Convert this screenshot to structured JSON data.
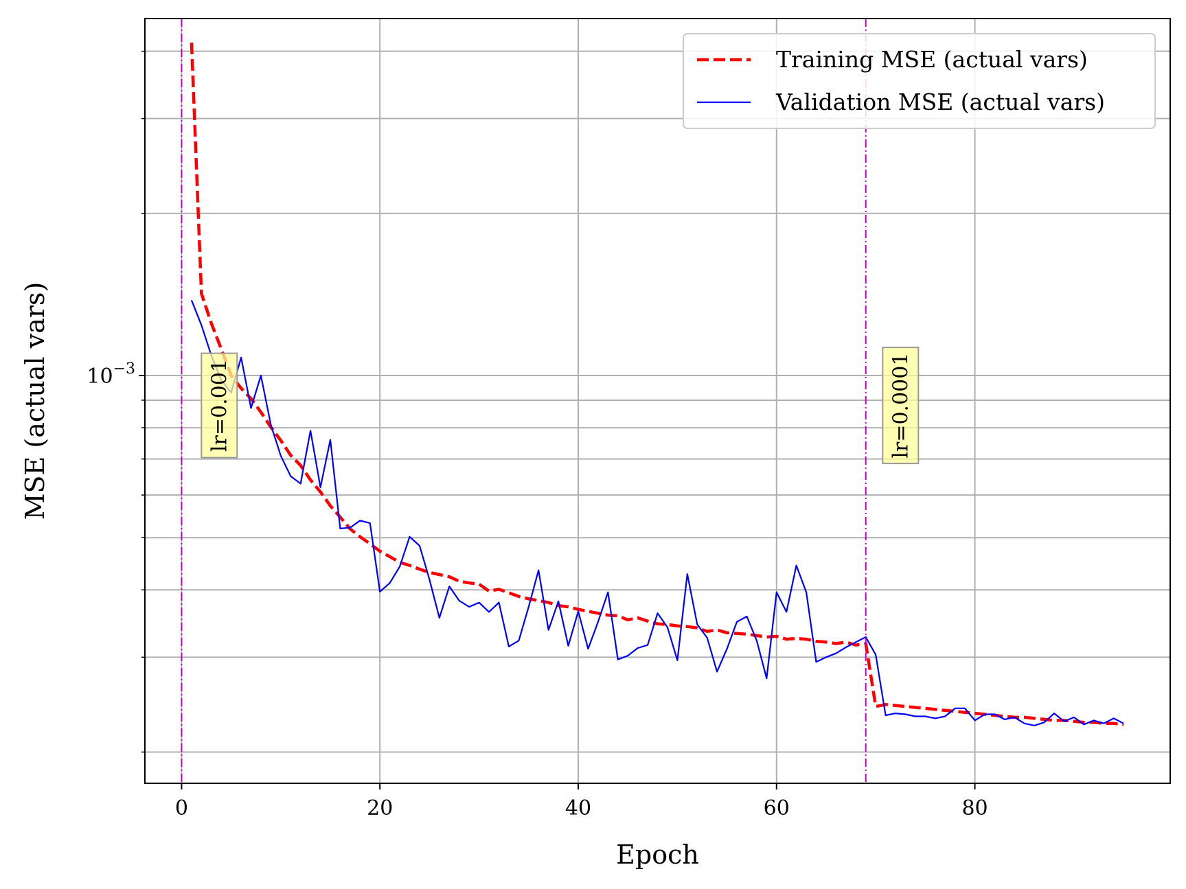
{
  "chart_data": {
    "type": "line",
    "title": "",
    "xlabel": "Epoch",
    "ylabel": "MSE (actual vars)",
    "y_scale": "log",
    "xlim": [
      -3.7,
      99.7
    ],
    "ylim": [
      0.000175,
      0.0046
    ],
    "x_ticks": [
      0,
      20,
      40,
      60,
      80
    ],
    "x_tick_labels": [
      "0",
      "20",
      "40",
      "60",
      "80"
    ],
    "y_ticks": [
      0.001
    ],
    "y_tick_labels": [
      "10−3"
    ],
    "grid": true,
    "legend_position": "upper right",
    "series": [
      {
        "name": "Training MSE (actual vars)",
        "color": "#ff0000",
        "style": "dashed",
        "x": [
          1,
          2,
          3,
          4,
          5,
          6,
          7,
          8,
          9,
          10,
          11,
          12,
          13,
          14,
          15,
          16,
          17,
          18,
          19,
          20,
          21,
          22,
          23,
          24,
          25,
          26,
          27,
          28,
          29,
          30,
          31,
          32,
          33,
          34,
          35,
          36,
          37,
          38,
          39,
          40,
          41,
          42,
          43,
          44,
          45,
          46,
          47,
          48,
          49,
          50,
          51,
          52,
          53,
          54,
          55,
          56,
          57,
          58,
          59,
          60,
          61,
          62,
          63,
          64,
          65,
          66,
          67,
          68,
          69,
          70,
          71,
          72,
          73,
          74,
          75,
          76,
          77,
          78,
          79,
          80,
          81,
          82,
          83,
          84,
          85,
          86,
          87,
          88,
          89,
          90,
          91,
          92,
          93,
          94,
          95
        ],
        "y": [
          0.00415,
          0.00142,
          0.00125,
          0.00112,
          0.001,
          0.000947,
          0.000906,
          0.000855,
          0.000802,
          0.000758,
          0.000711,
          0.000681,
          0.00064,
          0.000608,
          0.000573,
          0.000546,
          0.000519,
          0.000502,
          0.000487,
          0.000472,
          0.000461,
          0.00045,
          0.000444,
          0.000437,
          0.000431,
          0.000427,
          0.000423,
          0.000415,
          0.000412,
          0.00041,
          0.000398,
          0.000401,
          0.000395,
          0.000389,
          0.000385,
          0.000382,
          0.000379,
          0.000374,
          0.000372,
          0.000368,
          0.000365,
          0.000362,
          0.000359,
          0.000358,
          0.000352,
          0.000355,
          0.00035,
          0.000346,
          0.000345,
          0.000343,
          0.000342,
          0.00034,
          0.000335,
          0.000337,
          0.000333,
          0.000332,
          0.000331,
          0.000329,
          0.000327,
          0.000328,
          0.000324,
          0.000325,
          0.000324,
          0.000321,
          0.00032,
          0.000318,
          0.00032,
          0.000316,
          0.000318,
          0.000243,
          0.000245,
          0.000244,
          0.000243,
          0.000242,
          0.000241,
          0.00024,
          0.000239,
          0.000238,
          0.000237,
          0.000236,
          0.000235,
          0.000234,
          0.000233,
          0.000232,
          0.000232,
          0.000231,
          0.00023,
          0.000229,
          0.000229,
          0.000228,
          0.000227,
          0.000227,
          0.000226,
          0.000226,
          0.000225
        ]
      },
      {
        "name": "Validation MSE (actual vars)",
        "color": "#0000ff",
        "style": "solid",
        "x": [
          1,
          2,
          3,
          4,
          5,
          6,
          7,
          8,
          9,
          10,
          11,
          12,
          13,
          14,
          15,
          16,
          17,
          18,
          19,
          20,
          21,
          22,
          23,
          24,
          25,
          26,
          27,
          28,
          29,
          30,
          31,
          32,
          33,
          34,
          35,
          36,
          37,
          38,
          39,
          40,
          41,
          42,
          43,
          44,
          45,
          46,
          47,
          48,
          49,
          50,
          51,
          52,
          53,
          54,
          55,
          56,
          57,
          58,
          59,
          60,
          61,
          62,
          63,
          64,
          65,
          66,
          67,
          68,
          69,
          70,
          71,
          72,
          73,
          74,
          75,
          76,
          77,
          78,
          79,
          80,
          81,
          82,
          83,
          84,
          85,
          86,
          87,
          88,
          89,
          90,
          91,
          92,
          93,
          94,
          95
        ],
        "y": [
          0.00138,
          0.00124,
          0.00109,
          0.00098,
          0.00093,
          0.00108,
          0.00087,
          0.001,
          0.00081,
          0.00071,
          0.00065,
          0.00063,
          0.00079,
          0.00062,
          0.00076,
          0.00052,
          0.000522,
          0.000538,
          0.000532,
          0.000397,
          0.000412,
          0.000442,
          0.000502,
          0.000483,
          0.000418,
          0.000355,
          0.000406,
          0.000382,
          0.000372,
          0.000379,
          0.000364,
          0.000379,
          0.000314,
          0.000322,
          0.000372,
          0.000435,
          0.000337,
          0.000381,
          0.000315,
          0.000365,
          0.000311,
          0.000349,
          0.000396,
          0.000297,
          0.000302,
          0.000312,
          0.000316,
          0.000362,
          0.000341,
          0.000296,
          0.000428,
          0.000345,
          0.000326,
          0.000282,
          0.000311,
          0.000349,
          0.000357,
          0.000322,
          0.000274,
          0.000396,
          0.000364,
          0.000444,
          0.000396,
          0.000294,
          0.0003,
          0.000305,
          0.000313,
          0.00032,
          0.000327,
          0.000303,
          0.000234,
          0.000236,
          0.000235,
          0.000233,
          0.000233,
          0.000231,
          0.000233,
          0.000241,
          0.000241,
          0.000229,
          0.000235,
          0.000235,
          0.00023,
          0.000232,
          0.000226,
          0.000224,
          0.000227,
          0.000236,
          0.000228,
          0.000232,
          0.000225,
          0.000229,
          0.000226,
          0.000231,
          0.000226
        ]
      }
    ],
    "vlines": [
      0,
      69
    ],
    "vline_color": "#bf00bf",
    "annotations": [
      {
        "text": "lr=0.001",
        "x": 3.8,
        "y": 0.00088,
        "bg": "#ffff99"
      },
      {
        "text": "lr=0.0001",
        "x": 72.5,
        "y": 0.00088,
        "bg": "#ffff99"
      }
    ]
  }
}
